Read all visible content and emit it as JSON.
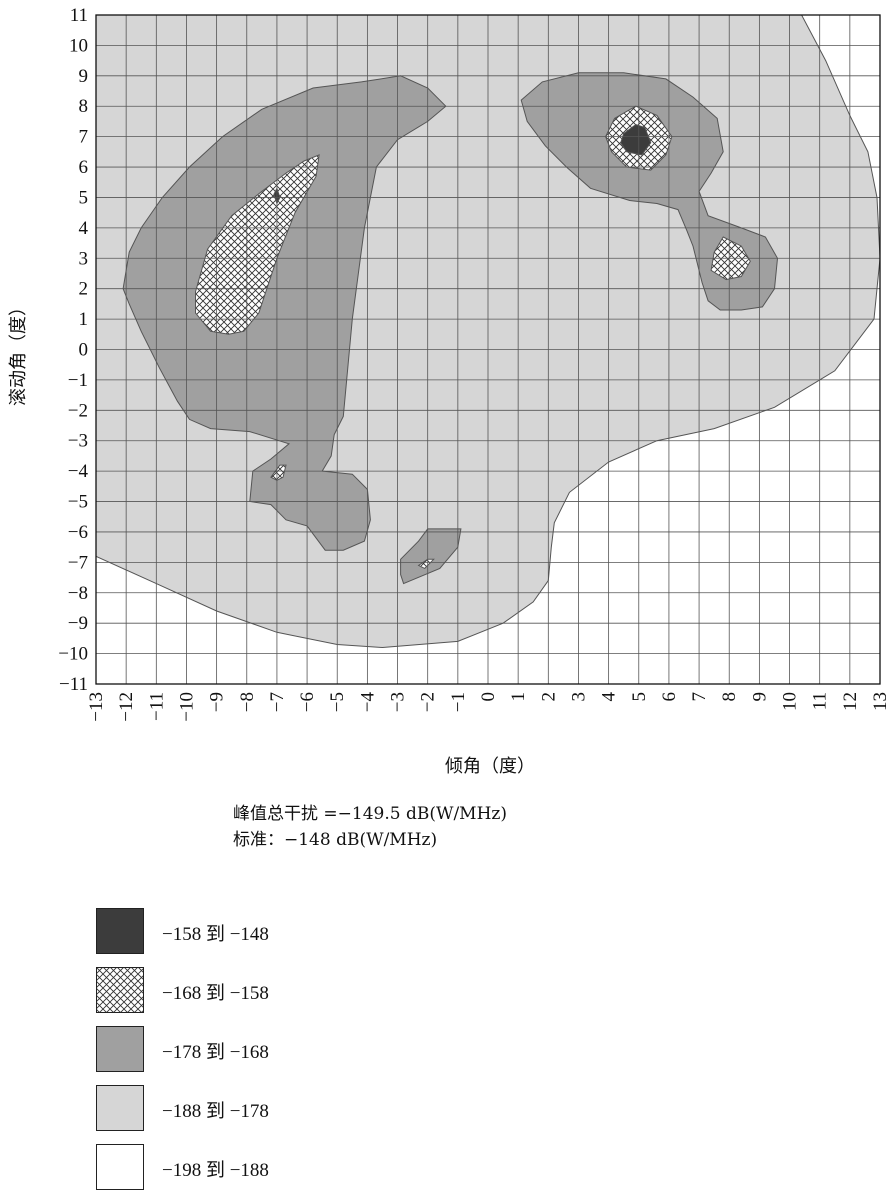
{
  "chart_data": {
    "type": "heatmap",
    "xlabel": "倾角（度）",
    "ylabel": "滚动角（度）",
    "xlim": [
      -13,
      13
    ],
    "ylim": [
      -11,
      11
    ],
    "x_ticks": [
      "−13",
      "−12",
      "−11",
      "−10",
      "−9",
      "−8",
      "−7",
      "−6",
      "−5",
      "−4",
      "−3",
      "−2",
      "−1",
      "0",
      "1",
      "2",
      "3",
      "4",
      "5",
      "6",
      "7",
      "8",
      "9",
      "10",
      "11",
      "12",
      "13"
    ],
    "y_ticks": [
      "11",
      "10",
      "9",
      "8",
      "7",
      "6",
      "5",
      "4",
      "3",
      "2",
      "1",
      "0",
      "−1",
      "−2",
      "−3",
      "−4",
      "−5",
      "−6",
      "−7",
      "−8",
      "−9",
      "−10",
      "−11"
    ],
    "grid": true,
    "levels": [
      {
        "range": "−158 到 −148",
        "color": "#3c3c3c",
        "pattern": "solid"
      },
      {
        "range": "−168 到 −158",
        "color": "#ffffff",
        "pattern": "crosshatch"
      },
      {
        "range": "−178 到 −168",
        "color": "#a0a0a0",
        "pattern": "solid"
      },
      {
        "range": "−188 到 −178",
        "color": "#d6d6d6",
        "pattern": "solid"
      },
      {
        "range": "−198 到 −188",
        "color": "#ffffff",
        "pattern": "solid"
      }
    ],
    "regions": [
      {
        "level": 3,
        "points": [
          [
            -13,
            -6.8
          ],
          [
            -11,
            -7.7
          ],
          [
            -9,
            -8.6
          ],
          [
            -7,
            -9.3
          ],
          [
            -5,
            -9.7
          ],
          [
            -3.5,
            -9.8
          ],
          [
            -1,
            -9.6
          ],
          [
            0.5,
            -9
          ],
          [
            1.5,
            -8.3
          ],
          [
            2,
            -7.6
          ],
          [
            2.1,
            -6.5
          ],
          [
            2.2,
            -5.7
          ],
          [
            2.7,
            -4.7
          ],
          [
            4,
            -3.7
          ],
          [
            5.6,
            -3
          ],
          [
            7.5,
            -2.6
          ],
          [
            9.5,
            -1.9
          ],
          [
            11.5,
            -0.7
          ],
          [
            12.8,
            1
          ],
          [
            13,
            3
          ],
          [
            12.9,
            5
          ],
          [
            12.6,
            6.5
          ],
          [
            12,
            7.7
          ],
          [
            11.2,
            9.5
          ],
          [
            10.4,
            11
          ],
          [
            -13,
            11
          ]
        ]
      },
      {
        "level": 2,
        "points": [
          [
            -12.1,
            2
          ],
          [
            -11.9,
            3.2
          ],
          [
            -11.5,
            4
          ],
          [
            -10.8,
            5
          ],
          [
            -9.9,
            6
          ],
          [
            -8.8,
            7
          ],
          [
            -7.5,
            7.9
          ],
          [
            -5.8,
            8.6
          ],
          [
            -4.2,
            8.8
          ],
          [
            -2.9,
            9
          ],
          [
            -2,
            8.6
          ],
          [
            -1.4,
            8
          ],
          [
            -2,
            7.5
          ],
          [
            -3,
            6.9
          ],
          [
            -3.7,
            6
          ],
          [
            -4.1,
            4
          ],
          [
            -4.5,
            1
          ],
          [
            -4.8,
            -2.2
          ],
          [
            -5.1,
            -2.8
          ],
          [
            -5.2,
            -3.5
          ],
          [
            -5.5,
            -4
          ],
          [
            -4.5,
            -4.1
          ],
          [
            -4,
            -4.6
          ],
          [
            -3.9,
            -5.6
          ],
          [
            -4.1,
            -6.3
          ],
          [
            -4.8,
            -6.6
          ],
          [
            -5.4,
            -6.6
          ],
          [
            -6,
            -5.8
          ],
          [
            -6.7,
            -5.6
          ],
          [
            -7.2,
            -5.1
          ],
          [
            -7.9,
            -5
          ],
          [
            -7.8,
            -4
          ],
          [
            -7.2,
            -3.6
          ],
          [
            -6.6,
            -3.1
          ],
          [
            -7.9,
            -2.7
          ],
          [
            -9.2,
            -2.6
          ],
          [
            -9.9,
            -2.3
          ],
          [
            -10.3,
            -1.7
          ],
          [
            -10.9,
            -0.6
          ],
          [
            -11.5,
            0.6
          ],
          [
            -11.9,
            1.5
          ]
        ]
      },
      {
        "level": 2,
        "points": [
          [
            -2.8,
            -7.7
          ],
          [
            -1.6,
            -7.2
          ],
          [
            -1,
            -6.5
          ],
          [
            -0.9,
            -5.9
          ],
          [
            -2,
            -5.9
          ],
          [
            -2.3,
            -6.3
          ],
          [
            -2.9,
            -6.9
          ],
          [
            -2.9,
            -7.4
          ]
        ]
      },
      {
        "level": 2,
        "points": [
          [
            1.1,
            8.2
          ],
          [
            1.8,
            8.8
          ],
          [
            3,
            9.1
          ],
          [
            4.5,
            9.1
          ],
          [
            5.9,
            8.9
          ],
          [
            6.8,
            8.3
          ],
          [
            7.6,
            7.6
          ],
          [
            7.8,
            6.5
          ],
          [
            7.4,
            5.8
          ],
          [
            7,
            5.2
          ],
          [
            7.3,
            4.4
          ],
          [
            8.4,
            4
          ],
          [
            9.2,
            3.7
          ],
          [
            9.6,
            3
          ],
          [
            9.5,
            2
          ],
          [
            9.1,
            1.4
          ],
          [
            8.4,
            1.3
          ],
          [
            7.7,
            1.3
          ],
          [
            7.3,
            1.6
          ],
          [
            7.1,
            2.2
          ],
          [
            6.8,
            3.4
          ],
          [
            6.6,
            3.9
          ],
          [
            6.3,
            4.6
          ],
          [
            5.6,
            4.8
          ],
          [
            4.7,
            4.9
          ],
          [
            3.4,
            5.3
          ],
          [
            2.6,
            6
          ],
          [
            1.9,
            6.7
          ],
          [
            1.3,
            7.5
          ]
        ]
      },
      {
        "level": 1,
        "points": [
          [
            -9.7,
            1.9
          ],
          [
            -9.3,
            3.3
          ],
          [
            -8.5,
            4.4
          ],
          [
            -7.5,
            5.2
          ],
          [
            -6.7,
            5.8
          ],
          [
            -6.1,
            6.2
          ],
          [
            -5.6,
            6.4
          ],
          [
            -5.7,
            5.7
          ],
          [
            -6.4,
            4.5
          ],
          [
            -7,
            3
          ],
          [
            -7.6,
            1.2
          ],
          [
            -8.1,
            0.6
          ],
          [
            -8.6,
            0.5
          ],
          [
            -9.2,
            0.6
          ],
          [
            -9.7,
            1.2
          ]
        ]
      },
      {
        "level": 1,
        "points": [
          [
            -7.2,
            -4.2
          ],
          [
            -6.9,
            -3.8
          ],
          [
            -6.7,
            -3.8
          ],
          [
            -6.8,
            -4.2
          ],
          [
            -7,
            -4.3
          ]
        ]
      },
      {
        "level": 1,
        "points": [
          [
            -2.3,
            -7.1
          ],
          [
            -2,
            -6.9
          ],
          [
            -1.8,
            -6.9
          ],
          [
            -2.1,
            -7.2
          ]
        ]
      },
      {
        "level": 1,
        "points": [
          [
            3.9,
            7
          ],
          [
            4.2,
            7.6
          ],
          [
            4.9,
            8
          ],
          [
            5.6,
            7.7
          ],
          [
            6.1,
            7
          ],
          [
            5.9,
            6.4
          ],
          [
            5.4,
            5.9
          ],
          [
            4.6,
            6
          ],
          [
            4.1,
            6.5
          ]
        ]
      },
      {
        "level": 1,
        "points": [
          [
            7.8,
            3.7
          ],
          [
            8.4,
            3.4
          ],
          [
            8.7,
            2.9
          ],
          [
            8.4,
            2.4
          ],
          [
            7.9,
            2.3
          ],
          [
            7.4,
            2.6
          ],
          [
            7.5,
            3.2
          ]
        ]
      },
      {
        "level": 0,
        "points": [
          [
            4.5,
            7.1
          ],
          [
            4.9,
            7.4
          ],
          [
            5.2,
            7.3
          ],
          [
            5.4,
            6.8
          ],
          [
            5.1,
            6.4
          ],
          [
            4.6,
            6.5
          ],
          [
            4.4,
            6.8
          ]
        ]
      },
      {
        "level": 0,
        "points": [
          [
            -7.1,
            5.1
          ],
          [
            -7,
            5.3
          ],
          [
            -6.9,
            5
          ],
          [
            -7,
            4.8
          ]
        ]
      }
    ]
  },
  "summary": {
    "peak_line": "峰值总干扰 =−149.5 dB(W/MHz)",
    "standard_line": "标准：−148 dB(W/MHz)"
  }
}
